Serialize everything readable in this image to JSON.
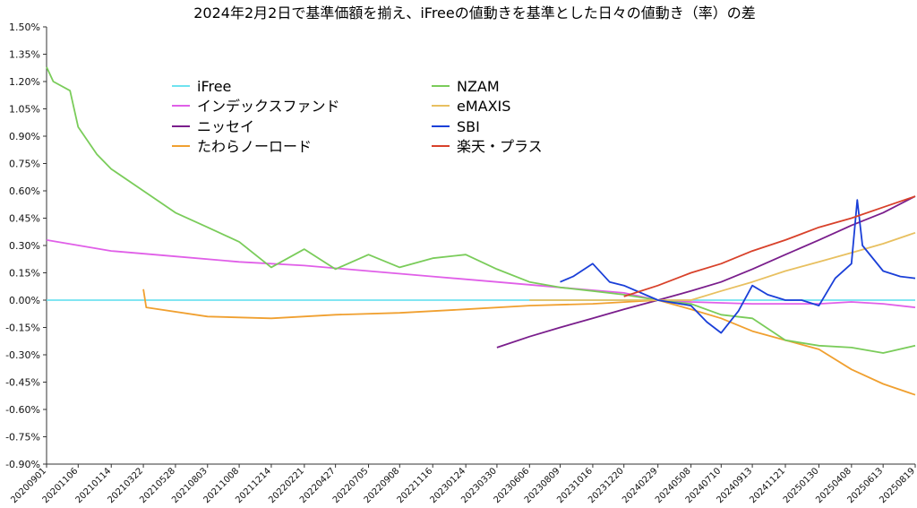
{
  "chart_data": {
    "type": "line",
    "title": "2024年2月2日で基準価額を揃え、iFreeの値動きを基準とした日々の値動き（率）の差",
    "xlabel": "",
    "ylabel": "",
    "ylim": [
      -0.9,
      1.5
    ],
    "y_ticks": [
      "1.50%",
      "1.35%",
      "1.20%",
      "1.05%",
      "0.90%",
      "0.75%",
      "0.60%",
      "0.45%",
      "0.30%",
      "0.15%",
      "0.00%",
      "-0.15%",
      "-0.30%",
      "-0.45%",
      "-0.60%",
      "-0.75%",
      "-0.90%"
    ],
    "x_ticks": [
      "20200901",
      "20201106",
      "20210114",
      "20210322",
      "20210528",
      "20210803",
      "20211008",
      "20211214",
      "20220221",
      "20220427",
      "20220705",
      "20220908",
      "20221116",
      "20230124",
      "20230330",
      "20230606",
      "20230809",
      "20231016",
      "20231220",
      "20240229",
      "20240508",
      "20240710",
      "20240913",
      "20241121",
      "20250130",
      "20250408",
      "20250613",
      "20250819"
    ],
    "legend_position": "top-left",
    "grid": false,
    "series": [
      {
        "name": "iFree",
        "color": "#6fe3f0",
        "points": [
          [
            "20200901",
            0.0
          ],
          [
            "20250819",
            0.0
          ]
        ]
      },
      {
        "name": "インデックスファンド",
        "color": "#e05fe8",
        "points": [
          [
            "20200901",
            0.33
          ],
          [
            "20210114",
            0.27
          ],
          [
            "20210528",
            0.24
          ],
          [
            "20211008",
            0.21
          ],
          [
            "20220221",
            0.19
          ],
          [
            "20220705",
            0.16
          ],
          [
            "20221116",
            0.13
          ],
          [
            "20230330",
            0.1
          ],
          [
            "20230809",
            0.07
          ],
          [
            "20231220",
            0.04
          ],
          [
            "20240229",
            0.0
          ],
          [
            "20240508",
            -0.01
          ],
          [
            "20240913",
            -0.02
          ],
          [
            "20241121",
            -0.02
          ],
          [
            "20250130",
            -0.02
          ],
          [
            "20250408",
            -0.01
          ],
          [
            "20250613",
            -0.02
          ],
          [
            "20250819",
            -0.04
          ]
        ]
      },
      {
        "name": "ニッセイ",
        "color": "#7a1e8c",
        "points": [
          [
            "20230330",
            -0.26
          ],
          [
            "20230606",
            -0.2
          ],
          [
            "20230809",
            -0.15
          ],
          [
            "20231016",
            -0.1
          ],
          [
            "20231220",
            -0.05
          ],
          [
            "20240229",
            0.0
          ],
          [
            "20240508",
            0.05
          ],
          [
            "20240710",
            0.1
          ],
          [
            "20240913",
            0.17
          ],
          [
            "20241121",
            0.25
          ],
          [
            "20250130",
            0.33
          ],
          [
            "20250408",
            0.41
          ],
          [
            "20250613",
            0.48
          ],
          [
            "20250819",
            0.57
          ]
        ]
      },
      {
        "name": "たわらノーロード",
        "color": "#f0a030",
        "points": [
          [
            "20210322",
            0.06
          ],
          [
            "20210328",
            -0.04
          ],
          [
            "20210803",
            -0.09
          ],
          [
            "20211214",
            -0.1
          ],
          [
            "20220427",
            -0.08
          ],
          [
            "20220908",
            -0.07
          ],
          [
            "20230124",
            -0.05
          ],
          [
            "20230606",
            -0.03
          ],
          [
            "20231016",
            -0.02
          ],
          [
            "20240229",
            0.0
          ],
          [
            "20240508",
            -0.05
          ],
          [
            "20240710",
            -0.1
          ],
          [
            "20240913",
            -0.17
          ],
          [
            "20241121",
            -0.22
          ],
          [
            "20250130",
            -0.27
          ],
          [
            "20250408",
            -0.38
          ],
          [
            "20250613",
            -0.46
          ],
          [
            "20250819",
            -0.52
          ]
        ]
      },
      {
        "name": "NZAM",
        "color": "#7acc5a",
        "points": [
          [
            "20200901",
            1.28
          ],
          [
            "20200915",
            1.2
          ],
          [
            "20201020",
            1.15
          ],
          [
            "20201106",
            0.95
          ],
          [
            "20201215",
            0.8
          ],
          [
            "20210114",
            0.72
          ],
          [
            "20210322",
            0.6
          ],
          [
            "20210528",
            0.48
          ],
          [
            "20210803",
            0.4
          ],
          [
            "20211008",
            0.32
          ],
          [
            "20211214",
            0.18
          ],
          [
            "20220221",
            0.28
          ],
          [
            "20220427",
            0.17
          ],
          [
            "20220705",
            0.25
          ],
          [
            "20220908",
            0.18
          ],
          [
            "20221116",
            0.23
          ],
          [
            "20230124",
            0.25
          ],
          [
            "20230330",
            0.17
          ],
          [
            "20230606",
            0.1
          ],
          [
            "20230809",
            0.07
          ],
          [
            "20231016",
            0.05
          ],
          [
            "20231220",
            0.03
          ],
          [
            "20240229",
            0.0
          ],
          [
            "20240508",
            -0.02
          ],
          [
            "20240710",
            -0.08
          ],
          [
            "20240913",
            -0.1
          ],
          [
            "20241121",
            -0.22
          ],
          [
            "20250130",
            -0.25
          ],
          [
            "20250408",
            -0.26
          ],
          [
            "20250613",
            -0.29
          ],
          [
            "20250819",
            -0.25
          ]
        ]
      },
      {
        "name": "eMAXIS",
        "color": "#e8c060",
        "points": [
          [
            "20230606",
            0.0
          ],
          [
            "20231016",
            0.0
          ],
          [
            "20240229",
            0.0
          ],
          [
            "20240508",
            0.0
          ],
          [
            "20240710",
            0.05
          ],
          [
            "20240913",
            0.1
          ],
          [
            "20241121",
            0.16
          ],
          [
            "20250130",
            0.21
          ],
          [
            "20250408",
            0.26
          ],
          [
            "20250613",
            0.31
          ],
          [
            "20250819",
            0.37
          ]
        ]
      },
      {
        "name": "SBI",
        "color": "#1a3fd8",
        "points": [
          [
            "20230809",
            0.1
          ],
          [
            "20230905",
            0.13
          ],
          [
            "20231016",
            0.2
          ],
          [
            "20231120",
            0.1
          ],
          [
            "20231220",
            0.08
          ],
          [
            "20240229",
            0.0
          ],
          [
            "20240508",
            -0.03
          ],
          [
            "20240610",
            -0.12
          ],
          [
            "20240710",
            -0.18
          ],
          [
            "20240815",
            -0.06
          ],
          [
            "20240913",
            0.08
          ],
          [
            "20241015",
            0.03
          ],
          [
            "20241121",
            0.0
          ],
          [
            "20241225",
            0.0
          ],
          [
            "20250130",
            -0.03
          ],
          [
            "20250305",
            0.12
          ],
          [
            "20250408",
            0.2
          ],
          [
            "20250420",
            0.55
          ],
          [
            "20250501",
            0.3
          ],
          [
            "20250613",
            0.16
          ],
          [
            "20250719",
            0.13
          ],
          [
            "20250819",
            0.12
          ]
        ]
      },
      {
        "name": "楽天・プラス",
        "color": "#d8412a",
        "points": [
          [
            "20231220",
            0.02
          ],
          [
            "20240229",
            0.08
          ],
          [
            "20240508",
            0.15
          ],
          [
            "20240710",
            0.2
          ],
          [
            "20240913",
            0.27
          ],
          [
            "20241121",
            0.33
          ],
          [
            "20250130",
            0.4
          ],
          [
            "20250408",
            0.45
          ],
          [
            "20250613",
            0.51
          ],
          [
            "20250819",
            0.57
          ]
        ]
      }
    ]
  }
}
